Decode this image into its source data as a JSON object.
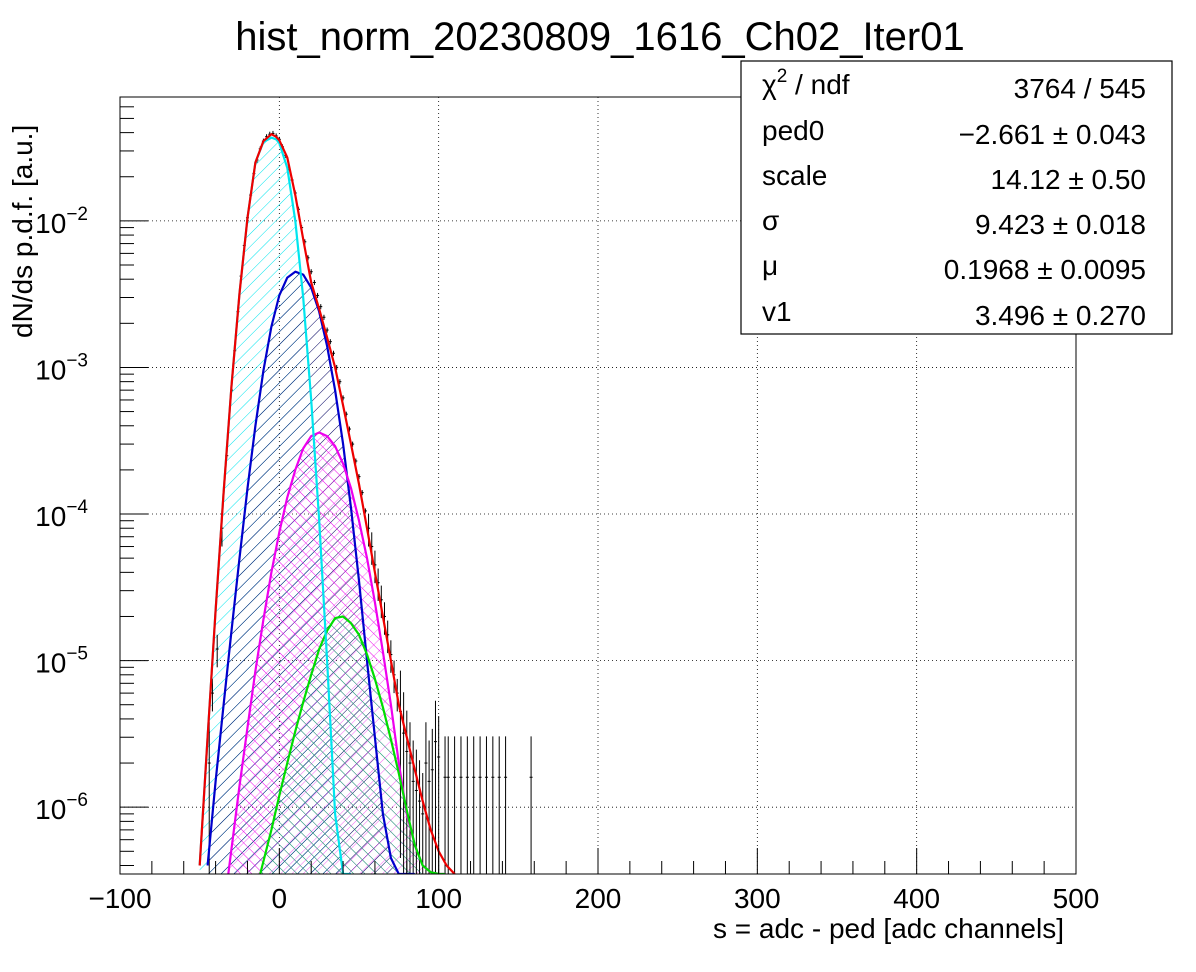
{
  "chart_data": {
    "type": "line",
    "title": "hist_norm_20230809_1616_Ch02_Iter01",
    "xlabel": "s = adc - ped [adc channels]",
    "ylabel": "dN/ds p.d.f. [a.u.]",
    "xlim": [
      -100,
      500
    ],
    "ylim": [
      3.5e-07,
      0.07
    ],
    "yscale": "log",
    "grid": true,
    "x_ticks": [
      {
        "value": -100,
        "label": "−100"
      },
      {
        "value": 0,
        "label": "0"
      },
      {
        "value": 100,
        "label": "100"
      },
      {
        "value": 200,
        "label": "200"
      },
      {
        "value": 300,
        "label": "300"
      },
      {
        "value": 400,
        "label": "400"
      },
      {
        "value": 500,
        "label": "500"
      }
    ],
    "y_ticks": [
      {
        "value": 0.01,
        "base": "10",
        "exp": "−2"
      },
      {
        "value": 0.001,
        "base": "10",
        "exp": "−3"
      },
      {
        "value": 0.0001,
        "base": "10",
        "exp": "−4"
      },
      {
        "value": 1e-05,
        "base": "10",
        "exp": "−5"
      },
      {
        "value": 1e-06,
        "base": "10",
        "exp": "−6"
      }
    ],
    "legend_placement": "top-right",
    "stats": [
      {
        "label": "χ",
        "sup": "2",
        "label_rest": " / ndf",
        "value": "3764 / 545"
      },
      {
        "label": "ped0",
        "value": "−2.661 ± 0.043"
      },
      {
        "label": "scale",
        "value": "14.12 ± 0.50"
      },
      {
        "label": "σ",
        "value": "9.423 ± 0.018"
      },
      {
        "label": "μ",
        "value": "0.1968 ± 0.0095"
      },
      {
        "label": "v1",
        "value": "3.496 ± 0.270"
      }
    ],
    "series": [
      {
        "color": "#00e5ee",
        "hatch": true,
        "x": [
          -50,
          -45,
          -40,
          -35,
          -30,
          -25,
          -20,
          -15,
          -10,
          -5,
          -2,
          0,
          5,
          10,
          15,
          20,
          25,
          30,
          35,
          40,
          45
        ],
        "y": [
          4e-07,
          3e-06,
          2.2e-05,
          0.00014,
          0.00075,
          0.0032,
          0.0105,
          0.025,
          0.0345,
          0.037,
          0.036,
          0.034,
          0.023,
          0.01,
          0.003,
          0.0006,
          9e-05,
          1e-05,
          9e-07,
          3.5e-07,
          3.5e-07
        ]
      },
      {
        "color": "#0000cc",
        "hatch": true,
        "x": [
          -45,
          -40,
          -35,
          -30,
          -25,
          -20,
          -15,
          -10,
          -5,
          0,
          5,
          10,
          15,
          20,
          25,
          30,
          35,
          40,
          45,
          50,
          55,
          60,
          65,
          70,
          75,
          80,
          85
        ],
        "y": [
          4e-07,
          1.5e-06,
          5e-06,
          1.6e-05,
          5e-05,
          0.00015,
          0.0004,
          0.00095,
          0.0019,
          0.0031,
          0.0041,
          0.0045,
          0.0043,
          0.0035,
          0.0024,
          0.0014,
          0.0007,
          0.0003,
          0.00011,
          3.5e-05,
          1e-05,
          3e-06,
          9e-07,
          4.5e-07,
          3.5e-07,
          3.5e-07,
          3.5e-07
        ]
      },
      {
        "color": "#ee00ee",
        "hatch": true,
        "x": [
          -32,
          -25,
          -20,
          -15,
          -10,
          -5,
          0,
          5,
          10,
          15,
          20,
          25,
          30,
          35,
          40,
          45,
          50,
          55,
          60,
          65,
          70,
          75,
          80,
          85,
          90,
          95,
          100,
          104
        ],
        "y": [
          3.5e-07,
          1.4e-06,
          3.5e-06,
          8.5e-06,
          1.9e-05,
          4e-05,
          7.5e-05,
          0.00013,
          0.0002,
          0.00028,
          0.00034,
          0.00036,
          0.00034,
          0.00029,
          0.00022,
          0.00015,
          9e-05,
          5e-05,
          2.5e-05,
          1.15e-05,
          5e-06,
          2e-06,
          9e-07,
          5.5e-07,
          4e-07,
          3.6e-07,
          3.5e-07,
          3.5e-07
        ]
      },
      {
        "color": "#00dd00",
        "hatch": true,
        "x": [
          -12,
          -5,
          0,
          5,
          10,
          15,
          20,
          25,
          30,
          35,
          40,
          45,
          50,
          55,
          60,
          65,
          70,
          75,
          80,
          85,
          90,
          95,
          100,
          104
        ],
        "y": [
          3.5e-07,
          7e-07,
          1.2e-06,
          2e-06,
          3.3e-06,
          5.2e-06,
          8e-06,
          1.2e-05,
          1.6e-05,
          1.95e-05,
          2e-05,
          1.8e-05,
          1.5e-05,
          1.1e-05,
          7.5e-06,
          4.8e-06,
          2.9e-06,
          1.7e-06,
          9.5e-07,
          5.5e-07,
          4e-07,
          3.6e-07,
          3.5e-07,
          3.5e-07
        ]
      },
      {
        "color": "#ee0000",
        "hatch": false,
        "x": [
          -50,
          -45,
          -40,
          -35,
          -30,
          -25,
          -20,
          -15,
          -10,
          -5,
          -2,
          0,
          5,
          10,
          15,
          20,
          25,
          30,
          35,
          40,
          45,
          50,
          55,
          60,
          65,
          70,
          75,
          80,
          85,
          90,
          95,
          100,
          105,
          110
        ],
        "y": [
          4e-07,
          3e-06,
          2.2e-05,
          0.00014,
          0.00075,
          0.0032,
          0.0105,
          0.025,
          0.035,
          0.039,
          0.0375,
          0.0355,
          0.027,
          0.015,
          0.0075,
          0.0038,
          0.0025,
          0.0016,
          0.001,
          0.00055,
          0.0003,
          0.00016,
          8e-05,
          4e-05,
          2e-05,
          1e-05,
          5e-06,
          3e-06,
          1.8e-06,
          1.1e-06,
          7e-07,
          5e-07,
          4e-07,
          3.5e-07
        ]
      }
    ],
    "data_points": {
      "x": [
        -44,
        -42,
        -39,
        -36,
        -33,
        -30,
        -28,
        -26,
        -24,
        -22,
        -20,
        -18,
        -16,
        -14,
        -12,
        -10,
        -8,
        -6,
        -4,
        -2,
        0,
        2,
        4,
        6,
        8,
        10,
        12,
        14,
        16,
        18,
        20,
        22,
        24,
        26,
        28,
        30,
        32,
        34,
        36,
        38,
        40,
        42,
        44,
        46,
        48,
        50,
        52,
        54,
        56,
        58,
        60,
        62,
        64,
        66,
        68,
        70,
        72,
        74,
        76,
        78,
        80,
        82,
        84,
        86,
        88,
        90,
        92,
        94,
        96,
        98,
        100,
        104,
        106,
        110,
        114,
        118,
        122,
        126,
        130,
        134,
        138,
        142,
        158
      ],
      "y": [
        2e-06,
        6e-06,
        1.2e-05,
        8e-05,
        0.00025,
        0.0007,
        0.0013,
        0.0024,
        0.0042,
        0.0068,
        0.0105,
        0.015,
        0.021,
        0.026,
        0.031,
        0.035,
        0.0375,
        0.039,
        0.0395,
        0.038,
        0.036,
        0.032,
        0.028,
        0.023,
        0.019,
        0.0155,
        0.012,
        0.009,
        0.0072,
        0.0056,
        0.0045,
        0.0038,
        0.0031,
        0.0026,
        0.0022,
        0.0018,
        0.0015,
        0.00125,
        0.001,
        0.0008,
        0.00062,
        0.00048,
        0.00038,
        0.0003,
        0.00023,
        0.00018,
        0.00014,
        0.000105,
        8e-05,
        6e-05,
        4.5e-05,
        3.4e-05,
        2.6e-05,
        2e-05,
        1.5e-05,
        1.1e-05,
        8e-06,
        6e-06,
        4.5e-06,
        3.2e-06,
        2.4e-06,
        2e-06,
        1.5e-06,
        1.3e-06,
        1.1e-06,
        9e-07,
        2e-06,
        1.5e-06,
        1.8e-06,
        2.8e-06,
        2.2e-06,
        1.6e-06,
        1.6e-06,
        1.6e-06,
        1.6e-06,
        1.6e-06,
        1.6e-06,
        1.6e-06,
        1.6e-06,
        1.6e-06,
        1.6e-06,
        1.6e-06,
        1.6e-06
      ]
    }
  }
}
